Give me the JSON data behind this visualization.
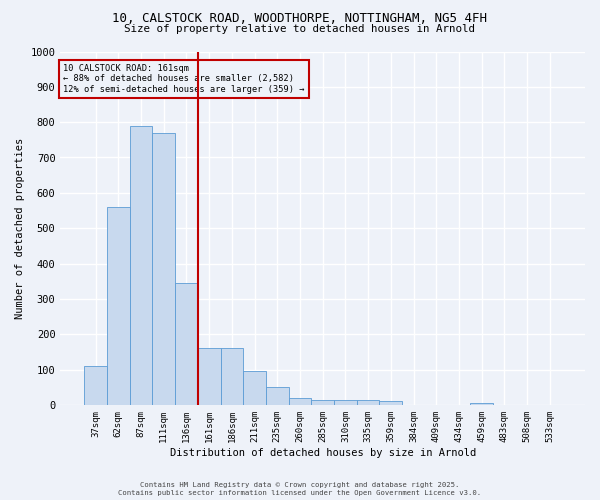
{
  "title_line1": "10, CALSTOCK ROAD, WOODTHORPE, NOTTINGHAM, NG5 4FH",
  "title_line2": "Size of property relative to detached houses in Arnold",
  "xlabel": "Distribution of detached houses by size in Arnold",
  "ylabel": "Number of detached properties",
  "categories": [
    "37sqm",
    "62sqm",
    "87sqm",
    "111sqm",
    "136sqm",
    "161sqm",
    "186sqm",
    "211sqm",
    "235sqm",
    "260sqm",
    "285sqm",
    "310sqm",
    "335sqm",
    "359sqm",
    "384sqm",
    "409sqm",
    "434sqm",
    "459sqm",
    "483sqm",
    "508sqm",
    "533sqm"
  ],
  "values": [
    110,
    560,
    790,
    770,
    345,
    160,
    160,
    95,
    50,
    20,
    13,
    13,
    13,
    10,
    0,
    0,
    0,
    5,
    0,
    0,
    0
  ],
  "bar_color": "#c8d9ee",
  "bar_edge_color": "#5b9bd5",
  "vline_x": 4.5,
  "vline_color": "#c00000",
  "annotation_title": "10 CALSTOCK ROAD: 161sqm",
  "annotation_line2": "← 88% of detached houses are smaller (2,582)",
  "annotation_line3": "12% of semi-detached houses are larger (359) →",
  "annotation_box_color": "#c00000",
  "background_color": "#eef2f9",
  "grid_color": "#ffffff",
  "ylim": [
    0,
    1000
  ],
  "yticks": [
    0,
    100,
    200,
    300,
    400,
    500,
    600,
    700,
    800,
    900,
    1000
  ],
  "footer_line1": "Contains HM Land Registry data © Crown copyright and database right 2025.",
  "footer_line2": "Contains public sector information licensed under the Open Government Licence v3.0."
}
